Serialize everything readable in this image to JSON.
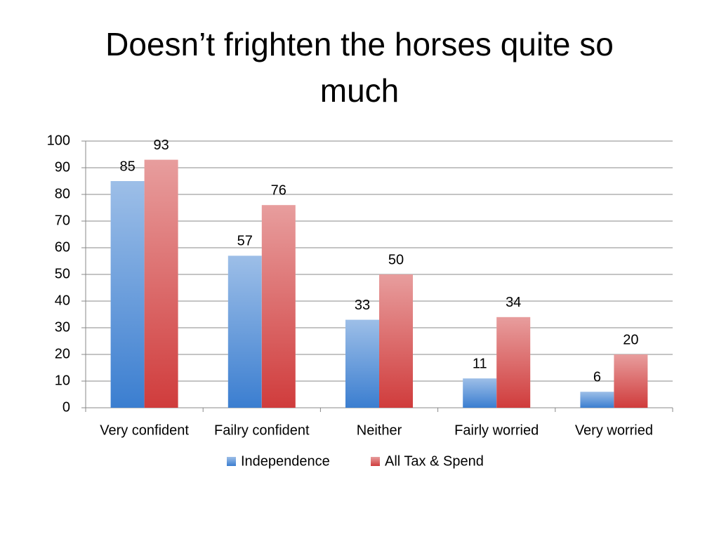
{
  "chart_data": {
    "type": "bar",
    "title": "Doesn’t frighten the horses quite so much",
    "categories": [
      "Very confident",
      "Failry confident",
      "Neither",
      "Fairly worried",
      "Very worried"
    ],
    "series": [
      {
        "name": "Independence",
        "color": "#3b7ed0",
        "values": [
          85,
          57,
          33,
          11,
          6
        ]
      },
      {
        "name": "All Tax & Spend",
        "color": "#d03c3c",
        "values": [
          93,
          76,
          50,
          34,
          20
        ]
      }
    ],
    "ylim": [
      0,
      100
    ],
    "yticks": [
      0,
      10,
      20,
      30,
      40,
      50,
      60,
      70,
      80,
      90,
      100
    ],
    "grid": true,
    "legend": "bottom"
  }
}
